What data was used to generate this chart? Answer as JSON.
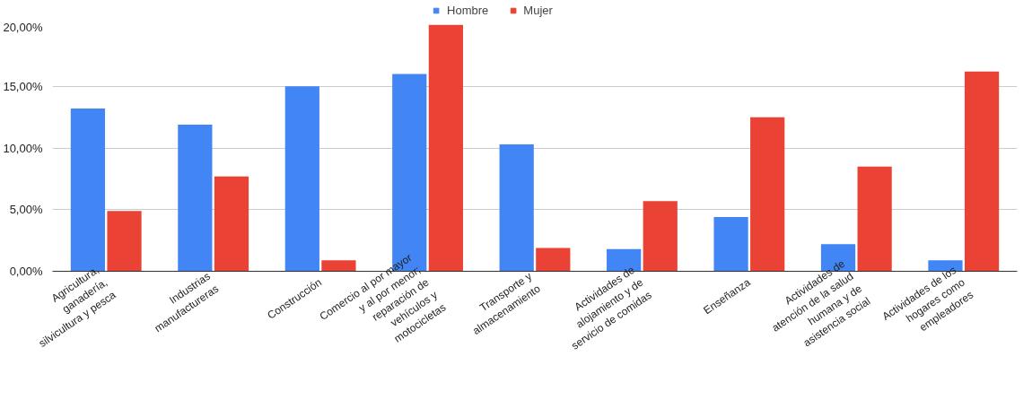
{
  "chart_data": {
    "type": "bar",
    "categories": [
      "Agricultura, ganadería, silvicultura y pesca",
      "Industrias manufactureras",
      "Construcción",
      "Comercio al por mayor y al por menor; reparación de vehículos y motocicletas",
      "Transporte y almacenamiento",
      "Actividades de alojamiento y de servicio de comidas",
      "Enseñanza",
      "Actividades de atención de la salud humana y de asistencia social",
      "Actividades de los hogares como empleadores"
    ],
    "series": [
      {
        "name": "Hombre",
        "color": "#4285f4",
        "values": [
          13.2,
          11.9,
          15.0,
          16.0,
          10.3,
          1.8,
          4.4,
          2.2,
          0.9
        ]
      },
      {
        "name": "Mujer",
        "color": "#ea4335",
        "values": [
          4.9,
          7.7,
          0.9,
          20.0,
          1.9,
          5.7,
          12.5,
          8.5,
          16.2
        ]
      }
    ],
    "ylim": [
      0,
      20
    ],
    "yticks": [
      {
        "value": 0,
        "label": "0,00%"
      },
      {
        "value": 5,
        "label": "5,00%"
      },
      {
        "value": 10,
        "label": "10,00%"
      },
      {
        "value": 15,
        "label": "15,00%"
      },
      {
        "value": 20,
        "label": "20,00%"
      }
    ],
    "grid": "y",
    "legend": "top"
  }
}
